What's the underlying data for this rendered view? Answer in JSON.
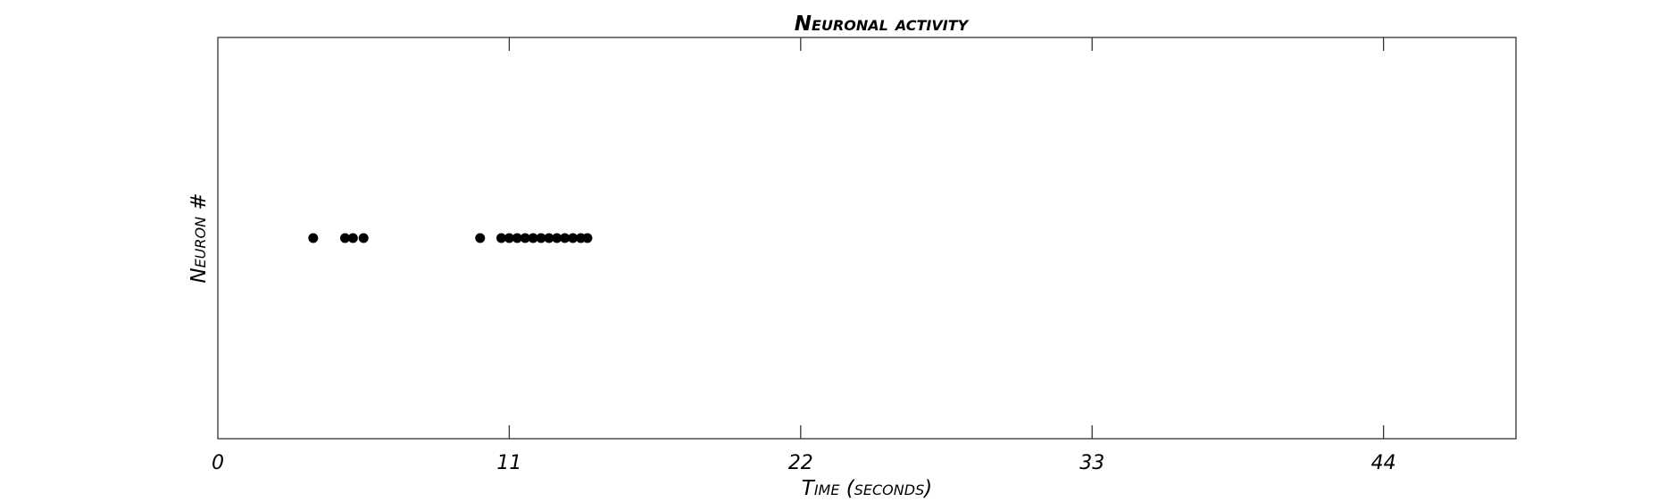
{
  "chart_data": {
    "type": "scatter",
    "title": "Neuronal activity",
    "xlabel": "Time (seconds)",
    "ylabel": "Neuron #",
    "xlim": [
      0,
      49
    ],
    "xticks": [
      0,
      11,
      22,
      33,
      44
    ],
    "yticks": [],
    "grid": false,
    "series": [
      {
        "color": "#000000",
        "points": [
          {
            "x": 3.6,
            "y": 0
          },
          {
            "x": 4.8,
            "y": 0
          },
          {
            "x": 5.1,
            "y": 0
          },
          {
            "x": 5.5,
            "y": 0
          },
          {
            "x": 9.9,
            "y": 0
          },
          {
            "x": 10.7,
            "y": 0
          },
          {
            "x": 11.0,
            "y": 0
          },
          {
            "x": 11.3,
            "y": 0
          },
          {
            "x": 11.6,
            "y": 0
          },
          {
            "x": 11.9,
            "y": 0
          },
          {
            "x": 12.2,
            "y": 0
          },
          {
            "x": 12.5,
            "y": 0
          },
          {
            "x": 12.8,
            "y": 0
          },
          {
            "x": 13.1,
            "y": 0
          },
          {
            "x": 13.4,
            "y": 0
          },
          {
            "x": 13.7,
            "y": 0
          },
          {
            "x": 13.95,
            "y": 0
          }
        ]
      }
    ]
  }
}
